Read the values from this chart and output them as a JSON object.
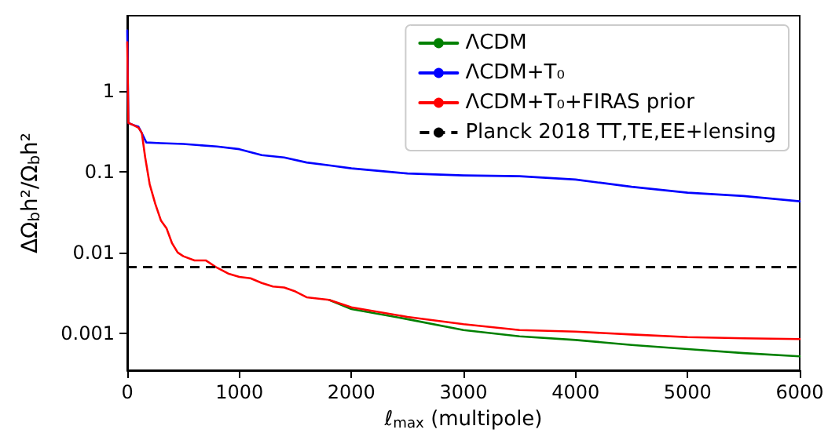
{
  "chart_data": {
    "type": "line",
    "xlabel": "ℓ$_{max}$ (multipole)",
    "ylabel": "ΔΩ$_{b}$h²/Ω$_{b}$h²",
    "log": "y",
    "xlim": [
      0,
      6000
    ],
    "xticks": [
      0,
      1000,
      2000,
      3000,
      4000,
      5000,
      6000
    ],
    "ylim": [
      0.00035,
      8.5
    ],
    "yticks": [
      0.001,
      0.01,
      0.1,
      1
    ],
    "grid": false,
    "legend": "top right",
    "line_style": "solid",
    "marker": "none",
    "series": [
      {
        "name": "ΛCDM",
        "color": "#008000",
        "x": [
          1800,
          2000,
          2500,
          3000,
          3500,
          4000,
          4500,
          5000,
          5500,
          6000
        ],
        "values": [
          0.0026,
          0.002,
          0.0015,
          0.0011,
          0.00092,
          0.00083,
          0.00072,
          0.00064,
          0.00057,
          0.00052
        ]
      },
      {
        "name": "ΛCDM+T₀",
        "color": "#0000ff",
        "x": [
          0,
          10,
          50,
          100,
          130,
          170,
          300,
          500,
          800,
          1000,
          1200,
          1400,
          1600,
          1800,
          2000,
          2500,
          3000,
          3500,
          4000,
          4500,
          5000,
          5500,
          6000
        ],
        "values": [
          5.6,
          0.4,
          0.38,
          0.36,
          0.3,
          0.23,
          0.225,
          0.22,
          0.205,
          0.19,
          0.16,
          0.15,
          0.13,
          0.12,
          0.11,
          0.095,
          0.09,
          0.088,
          0.08,
          0.065,
          0.055,
          0.05,
          0.043
        ]
      },
      {
        "name": "ΛCDM+T₀+FIRAS prior",
        "color": "#ff0000",
        "x": [
          0,
          10,
          50,
          100,
          130,
          160,
          200,
          250,
          300,
          350,
          400,
          450,
          500,
          600,
          700,
          800,
          900,
          1000,
          1100,
          1200,
          1300,
          1400,
          1500,
          1600,
          1800,
          2000,
          2500,
          3000,
          3500,
          4000,
          4500,
          5000,
          5500,
          6000
        ],
        "values": [
          4,
          0.4,
          0.38,
          0.35,
          0.3,
          0.15,
          0.07,
          0.04,
          0.025,
          0.02,
          0.013,
          0.01,
          0.009,
          0.008,
          0.008,
          0.0065,
          0.0055,
          0.005,
          0.0048,
          0.0042,
          0.0038,
          0.0037,
          0.0033,
          0.0028,
          0.0026,
          0.0021,
          0.0016,
          0.0013,
          0.0011,
          0.00105,
          0.00097,
          0.0009,
          0.00087,
          0.00085
        ]
      }
    ],
    "ref_lines": [
      {
        "axis": "y",
        "value": 0.0066,
        "label": "Planck 2018 TT,TE,EE+lensing",
        "color": "#000000",
        "line_style": "dashed"
      }
    ]
  }
}
